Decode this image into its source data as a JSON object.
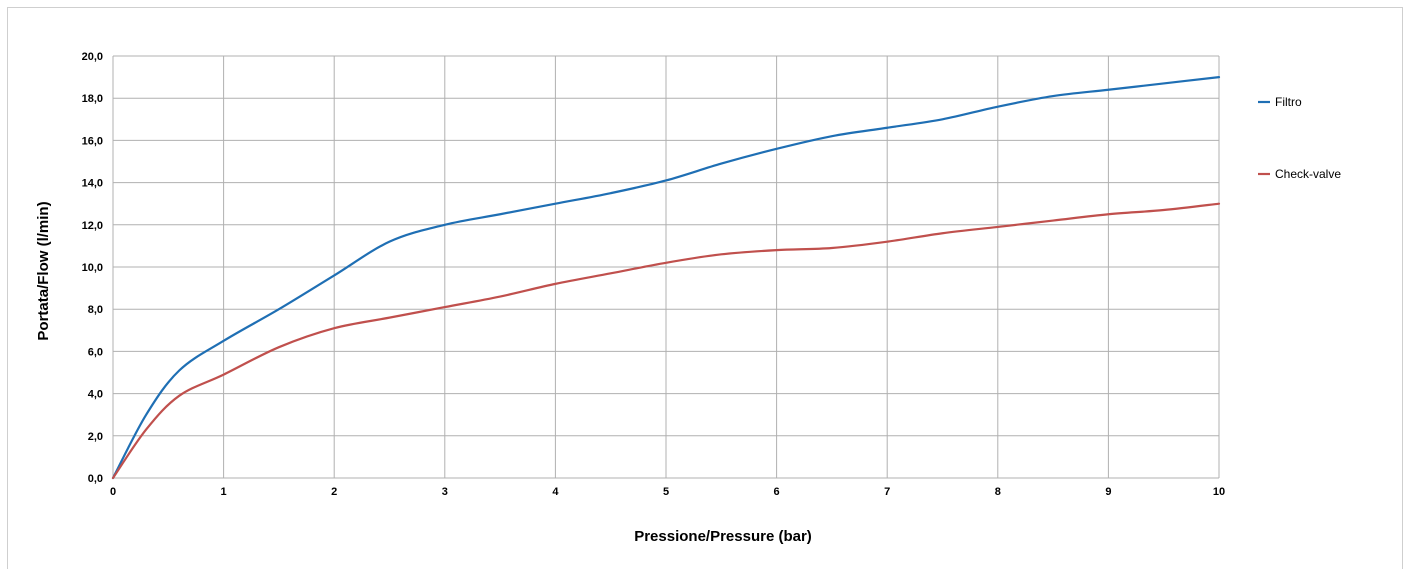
{
  "chart_data": {
    "type": "line",
    "title": "",
    "xlabel": "Pressione/Pressure (bar)",
    "ylabel": "Portata/Flow (l/min)",
    "xlim": [
      0,
      10
    ],
    "ylim": [
      0,
      20
    ],
    "x_ticks": [
      "0",
      "1",
      "2",
      "3",
      "4",
      "5",
      "6",
      "7",
      "8",
      "9",
      "10"
    ],
    "y_ticks": [
      "0,0",
      "2,0",
      "4,0",
      "6,0",
      "8,0",
      "10,0",
      "12,0",
      "14,0",
      "16,0",
      "18,0",
      "20,0"
    ],
    "grid": true,
    "legend_position": "right",
    "series": [
      {
        "name": "Filtro",
        "color": "#1f6fb4",
        "x": [
          0,
          0.3,
          0.6,
          1,
          1.5,
          2,
          2.5,
          3,
          3.5,
          4,
          4.5,
          5,
          5.5,
          6,
          6.5,
          7,
          7.5,
          8,
          8.5,
          9,
          9.5,
          10
        ],
        "y": [
          0,
          3.0,
          5.1,
          6.5,
          8.0,
          9.6,
          11.2,
          12.0,
          12.5,
          13.0,
          13.5,
          14.1,
          14.9,
          15.6,
          16.2,
          16.6,
          17.0,
          17.6,
          18.1,
          18.4,
          18.7,
          19.0
        ]
      },
      {
        "name": "Check-valve",
        "color": "#c0504d",
        "x": [
          0,
          0.3,
          0.6,
          1,
          1.5,
          2,
          2.5,
          3,
          3.5,
          4,
          4.5,
          5,
          5.5,
          6,
          6.5,
          7,
          7.5,
          8,
          8.5,
          9,
          9.5,
          10
        ],
        "y": [
          0,
          2.3,
          3.9,
          4.9,
          6.2,
          7.1,
          7.6,
          8.1,
          8.6,
          9.2,
          9.7,
          10.2,
          10.6,
          10.8,
          10.9,
          11.2,
          11.6,
          11.9,
          12.2,
          12.5,
          12.7,
          13.0
        ]
      }
    ]
  }
}
